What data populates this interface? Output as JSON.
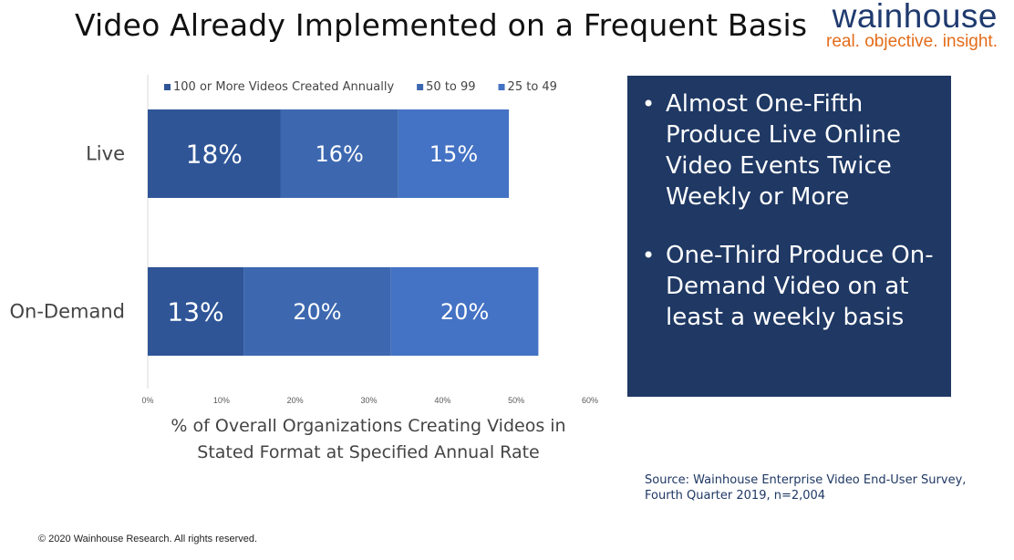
{
  "title": "Video Already Implemented on a Frequent Basis",
  "logo": {
    "name": "wainhouse",
    "tagline": "real. objective. insight."
  },
  "callout": {
    "bullets": [
      "Almost One-Fifth Produce Live Online Video Events Twice Weekly or More",
      "One-Third Produce On-Demand Video on at least a weekly basis"
    ]
  },
  "source": {
    "line1": "Source: Wainhouse Enterprise Video End-User Survey,",
    "line2": "Fourth Quarter 2019, n=2,004"
  },
  "copyright": "© 2020 Wainhouse Research.  All rights reserved.",
  "colors": {
    "series1": "#2f5597",
    "series2": "#3d68b0",
    "series3": "#4472c4",
    "panel": "#1f3864",
    "accent": "#e46c1a"
  },
  "chart_data": {
    "type": "bar",
    "orientation": "horizontal",
    "stacked": true,
    "categories": [
      "Live",
      "On-Demand"
    ],
    "series": [
      {
        "name": "100 or More Videos Created Annually",
        "values": [
          18,
          13
        ],
        "labels": [
          "18%",
          "13%"
        ]
      },
      {
        "name": "50 to 99",
        "values": [
          16,
          20
        ],
        "labels": [
          "16%",
          "20%"
        ]
      },
      {
        "name": "25 to 49",
        "values": [
          15,
          20
        ],
        "labels": [
          "15%",
          "20%"
        ]
      }
    ],
    "xlim": [
      0,
      60
    ],
    "xticks": [
      0,
      10,
      20,
      30,
      40,
      50,
      60
    ],
    "xtick_labels": [
      "0%",
      "10%",
      "20%",
      "30%",
      "40%",
      "50%",
      "60%"
    ],
    "xlabel_line1": "% of Overall Organizations Creating Videos in",
    "xlabel_line2": "Stated Format at Specified Annual Rate",
    "legend_position": "top",
    "grid": false
  }
}
